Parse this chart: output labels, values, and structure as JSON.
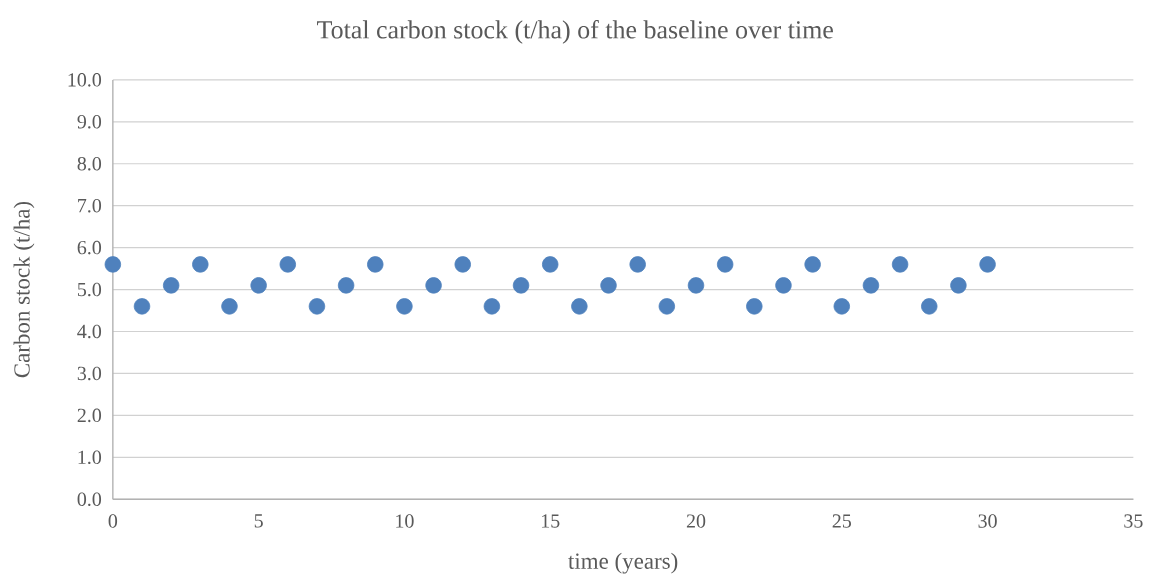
{
  "chart_data": {
    "type": "scatter",
    "title": "Total carbon stock (t/ha) of the baseline over time",
    "xlabel": "time (years)",
    "ylabel": "Carbon stock (t/ha)",
    "x": [
      0,
      1,
      2,
      3,
      4,
      5,
      6,
      7,
      8,
      9,
      10,
      11,
      12,
      13,
      14,
      15,
      16,
      17,
      18,
      19,
      20,
      21,
      22,
      23,
      24,
      25,
      26,
      27,
      28,
      29,
      30
    ],
    "values": [
      5.6,
      4.6,
      5.1,
      5.6,
      4.6,
      5.1,
      5.6,
      4.6,
      5.1,
      5.6,
      4.6,
      5.1,
      5.6,
      4.6,
      5.1,
      5.6,
      4.6,
      5.1,
      5.6,
      4.6,
      5.1,
      5.6,
      4.6,
      5.1,
      5.6,
      4.6,
      5.1,
      5.6,
      4.6,
      5.1,
      5.6
    ],
    "color": "#4f81bd",
    "marker": "circle",
    "grid": "y",
    "xlim": [
      0,
      35
    ],
    "xticks": [
      0,
      5,
      10,
      15,
      20,
      25,
      30,
      35
    ],
    "ylim": [
      0,
      10
    ],
    "yticks": [
      {
        "value": 0,
        "label": "0.0"
      },
      {
        "value": 1,
        "label": "1.0"
      },
      {
        "value": 2,
        "label": "2.0"
      },
      {
        "value": 3,
        "label": "3.0"
      },
      {
        "value": 4,
        "label": "4.0"
      },
      {
        "value": 5,
        "label": "5.0"
      },
      {
        "value": 6,
        "label": "6.0"
      },
      {
        "value": 7,
        "label": "7.0"
      },
      {
        "value": 8,
        "label": "8.0"
      },
      {
        "value": 9,
        "label": "9.0"
      },
      {
        "value": 10,
        "label": "10.0"
      }
    ]
  }
}
